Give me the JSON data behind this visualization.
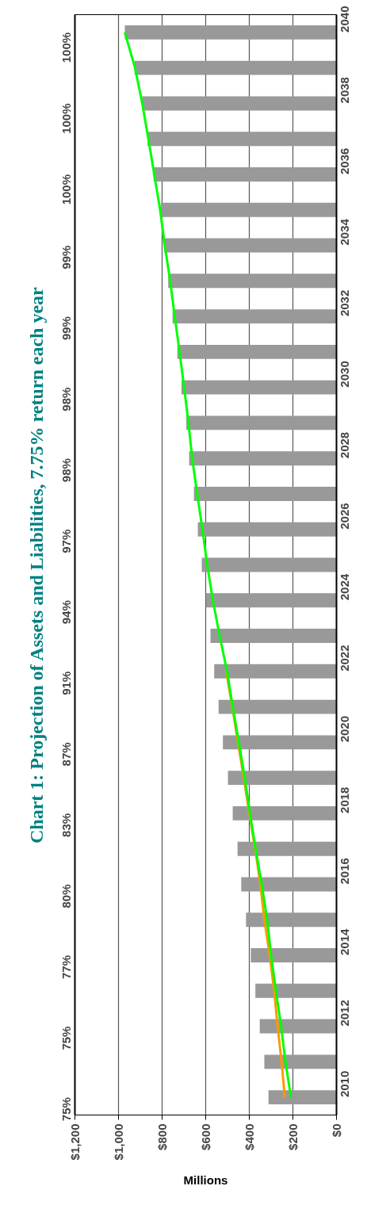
{
  "chart_data": {
    "type": "bar",
    "orientation": "horizontal",
    "title": "Chart 1: Projection of Assets and Liabilities, 7.75% return each year",
    "xlabel": "Millions",
    "categories": [
      "2040",
      null,
      "2038",
      null,
      "2036",
      null,
      "2034",
      null,
      "2032",
      null,
      "2030",
      null,
      "2028",
      null,
      "2026",
      null,
      "2024",
      null,
      "2022",
      null,
      "2020",
      null,
      "2018",
      null,
      "2016",
      null,
      "2014",
      null,
      "2012",
      null,
      "2010"
    ],
    "series": [
      {
        "color": "#999999",
        "values": [
          971,
          926,
          892,
          867,
          839,
          806,
          791,
          772,
          752,
          730,
          711,
          689,
          676,
          654,
          636,
          618,
          599,
          578,
          561,
          541,
          521,
          498,
          476,
          454,
          437,
          415,
          393,
          372,
          352,
          331,
          312
        ]
      },
      {
        "type": "line",
        "color": "#ff9900",
        "values": [
          null,
          null,
          null,
          null,
          null,
          null,
          null,
          null,
          null,
          null,
          null,
          null,
          null,
          null,
          null,
          null,
          null,
          null,
          506,
          478,
          452,
          425,
          400,
          373,
          349,
          331,
          306,
          286,
          270,
          252,
          237
        ]
      },
      {
        "type": "line",
        "color": "#00ff00",
        "values": [
          971,
          924,
          891,
          863,
          836,
          809,
          788,
          763,
          742,
          720,
          699,
          679,
          662,
          639,
          615,
          593,
          567,
          536,
          502,
          476,
          448,
          421,
          397,
          371,
          343,
          318,
          300,
          278,
          254,
          234,
          209
        ]
      }
    ],
    "xlim": [
      1200,
      0
    ],
    "xticks": [
      {
        "value": 1200,
        "label": "$1,200"
      },
      {
        "value": 1000,
        "label": "$1,000"
      },
      {
        "value": 800,
        "label": "$800"
      },
      {
        "value": 600,
        "label": "$600"
      },
      {
        "value": 400,
        "label": "$400"
      },
      {
        "value": 200,
        "label": "$200"
      },
      {
        "value": 0,
        "label": "$0"
      }
    ],
    "grid": "x",
    "annotations": [
      "100%",
      "100%",
      "100%",
      "99%",
      "99%",
      "98%",
      "98%",
      "97%",
      "94%",
      "91%",
      "87%",
      "83%",
      "80%",
      "77%",
      "75%",
      "75%"
    ]
  }
}
